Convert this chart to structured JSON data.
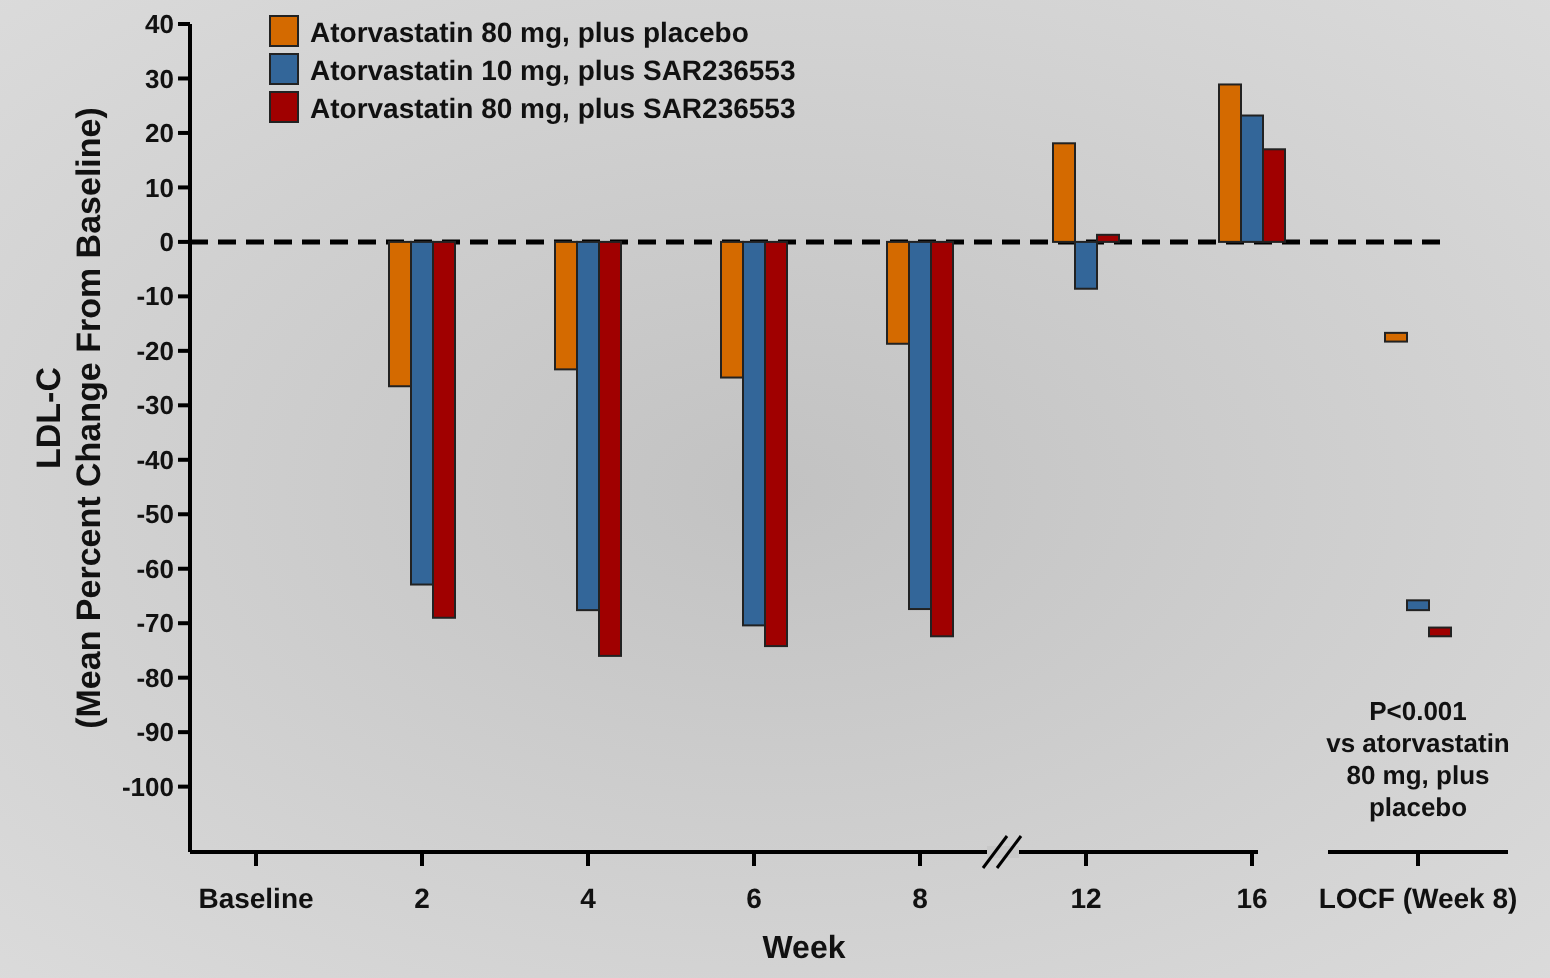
{
  "chart_data": {
    "type": "bar",
    "xlabel": "Week",
    "ylabel": "LDL-C\n(Mean Percent Change From Baseline)",
    "categories": [
      "Baseline",
      "2",
      "4",
      "6",
      "8",
      "12",
      "16",
      "LOCF (Week 8)"
    ],
    "series": [
      {
        "name": "Atorvastatin 80 mg, plus placebo",
        "color": "#d46a00",
        "values": [
          null,
          -26.5,
          -23.4,
          -24.9,
          -18.7,
          18.1,
          28.9,
          -1.6
        ],
        "base": [
          null,
          0,
          0,
          0,
          0,
          0,
          0,
          -16.7
        ]
      },
      {
        "name": "Atorvastatin 10 mg, plus SAR236553",
        "color": "#336699",
        "values": [
          null,
          -62.9,
          -67.6,
          -70.4,
          -67.4,
          -8.6,
          23.2,
          -1.8
        ],
        "base": [
          null,
          0,
          0,
          0,
          0,
          0,
          0,
          -65.8
        ]
      },
      {
        "name": "Atorvastatin 80 mg, plus SAR236553",
        "color": "#a00000",
        "values": [
          null,
          -69,
          -76,
          -74.2,
          -72.4,
          1.3,
          17,
          -1.6
        ],
        "base": [
          null,
          0,
          0,
          0,
          0,
          0,
          0,
          -70.8
        ]
      }
    ],
    "ylim": [
      -112,
      40
    ],
    "yticks": [
      40,
      30,
      20,
      10,
      0,
      -10,
      -20,
      -30,
      -40,
      -50,
      -60,
      -70,
      -80,
      -90,
      -100
    ],
    "ref_lines": [
      {
        "axis": "y",
        "value": 0,
        "line_style": "dashed",
        "color": "#000000"
      }
    ],
    "annotations": [
      "P<0.001\nvs atorvastatin\n80 mg, plus\nplacebo"
    ],
    "legend": "top left"
  }
}
